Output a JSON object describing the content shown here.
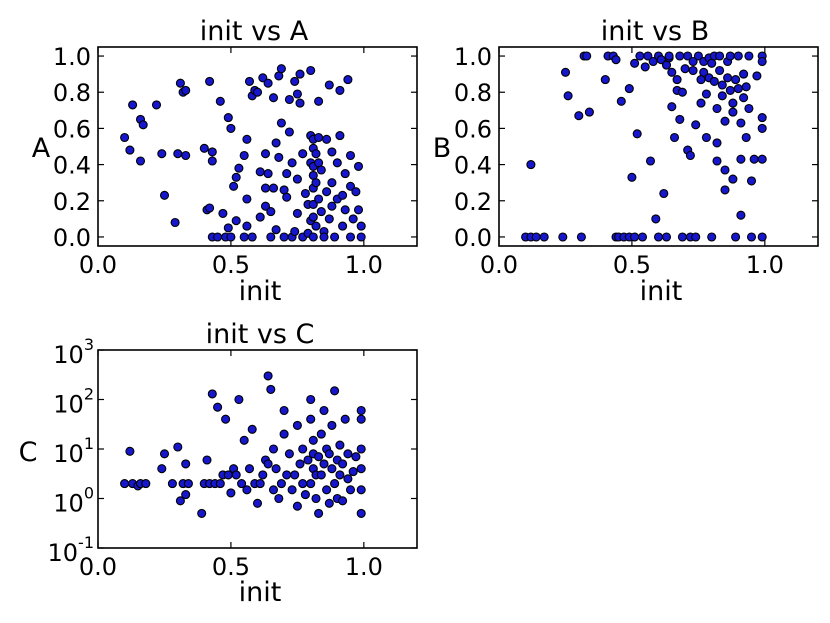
{
  "chart_data": [
    {
      "type": "scatter",
      "title": "init vs A",
      "xlabel": "init",
      "ylabel": "A",
      "xlim": [
        0.0,
        1.2
      ],
      "ylim": [
        -0.05,
        1.05
      ],
      "yscale": "linear",
      "xticks": [
        "0.0",
        "0.5",
        "1.0"
      ],
      "yticks": [
        "0.0",
        "0.2",
        "0.4",
        "0.6",
        "0.8",
        "1.0"
      ],
      "grid": false,
      "marker_color": "#1616cc",
      "points": [
        [
          0.1,
          0.55
        ],
        [
          0.12,
          0.48
        ],
        [
          0.13,
          0.73
        ],
        [
          0.16,
          0.65
        ],
        [
          0.16,
          0.42
        ],
        [
          0.17,
          0.62
        ],
        [
          0.22,
          0.73
        ],
        [
          0.24,
          0.46
        ],
        [
          0.25,
          0.23
        ],
        [
          0.29,
          0.08
        ],
        [
          0.3,
          0.46
        ],
        [
          0.31,
          0.85
        ],
        [
          0.32,
          0.8
        ],
        [
          0.33,
          0.81
        ],
        [
          0.33,
          0.45
        ],
        [
          0.4,
          0.49
        ],
        [
          0.41,
          0.15
        ],
        [
          0.42,
          0.16
        ],
        [
          0.42,
          0.86
        ],
        [
          0.43,
          0.47
        ],
        [
          0.43,
          0.42
        ],
        [
          0.43,
          0.0
        ],
        [
          0.45,
          0.0
        ],
        [
          0.46,
          0.75
        ],
        [
          0.47,
          0.13
        ],
        [
          0.48,
          0.0
        ],
        [
          0.49,
          0.66
        ],
        [
          0.49,
          0.05
        ],
        [
          0.5,
          0.0
        ],
        [
          0.5,
          0.6
        ],
        [
          0.51,
          0.28
        ],
        [
          0.52,
          0.33
        ],
        [
          0.52,
          0.09
        ],
        [
          0.53,
          0.38
        ],
        [
          0.55,
          0.0
        ],
        [
          0.55,
          0.45
        ],
        [
          0.56,
          0.54
        ],
        [
          0.56,
          0.21
        ],
        [
          0.56,
          0.06
        ],
        [
          0.57,
          0.86
        ],
        [
          0.58,
          0.78
        ],
        [
          0.58,
          0.0
        ],
        [
          0.59,
          0.81
        ],
        [
          0.6,
          0.8
        ],
        [
          0.61,
          0.11
        ],
        [
          0.61,
          0.36
        ],
        [
          0.62,
          0.88
        ],
        [
          0.63,
          0.17
        ],
        [
          0.63,
          0.46
        ],
        [
          0.63,
          0.27
        ],
        [
          0.64,
          0.85
        ],
        [
          0.64,
          0.35
        ],
        [
          0.65,
          0.0
        ],
        [
          0.65,
          0.14
        ],
        [
          0.66,
          0.77
        ],
        [
          0.66,
          0.27
        ],
        [
          0.67,
          0.04
        ],
        [
          0.67,
          0.52
        ],
        [
          0.68,
          0.44
        ],
        [
          0.68,
          0.89
        ],
        [
          0.69,
          0.93
        ],
        [
          0.69,
          0.63
        ],
        [
          0.7,
          0.0
        ],
        [
          0.7,
          0.26
        ],
        [
          0.71,
          0.35
        ],
        [
          0.71,
          0.22
        ],
        [
          0.72,
          0.76
        ],
        [
          0.72,
          0.58
        ],
        [
          0.73,
          0.41
        ],
        [
          0.73,
          0.0
        ],
        [
          0.74,
          0.03
        ],
        [
          0.74,
          0.86
        ],
        [
          0.75,
          0.79
        ],
        [
          0.75,
          0.32
        ],
        [
          0.75,
          0.13
        ],
        [
          0.76,
          0.9
        ],
        [
          0.76,
          0.74
        ],
        [
          0.77,
          0.46
        ],
        [
          0.77,
          0.0
        ],
        [
          0.78,
          0.24
        ],
        [
          0.79,
          0.18
        ],
        [
          0.79,
          0.02
        ],
        [
          0.8,
          0.92
        ],
        [
          0.8,
          0.56
        ],
        [
          0.8,
          0.41
        ],
        [
          0.8,
          0.09
        ],
        [
          0.81,
          0.54
        ],
        [
          0.81,
          0.49
        ],
        [
          0.81,
          0.39
        ],
        [
          0.81,
          0.34
        ],
        [
          0.81,
          0.27
        ],
        [
          0.81,
          0.18
        ],
        [
          0.81,
          0.11
        ],
        [
          0.81,
          0.0
        ],
        [
          0.82,
          0.46
        ],
        [
          0.82,
          0.3
        ],
        [
          0.82,
          0.06
        ],
        [
          0.83,
          0.75
        ],
        [
          0.83,
          0.55
        ],
        [
          0.83,
          0.41
        ],
        [
          0.83,
          0.21
        ],
        [
          0.84,
          0.37
        ],
        [
          0.84,
          0.14
        ],
        [
          0.85,
          0.03
        ],
        [
          0.85,
          0.0
        ],
        [
          0.86,
          0.54
        ],
        [
          0.86,
          0.25
        ],
        [
          0.87,
          0.84
        ],
        [
          0.87,
          0.1
        ],
        [
          0.88,
          0.47
        ],
        [
          0.88,
          0.3
        ],
        [
          0.88,
          0.17
        ],
        [
          0.89,
          0.0
        ],
        [
          0.9,
          0.41
        ],
        [
          0.9,
          0.21
        ],
        [
          0.91,
          0.81
        ],
        [
          0.91,
          0.56
        ],
        [
          0.92,
          0.23
        ],
        [
          0.92,
          0.06
        ],
        [
          0.93,
          0.35
        ],
        [
          0.93,
          0.15
        ],
        [
          0.94,
          0.87
        ],
        [
          0.95,
          0.45
        ],
        [
          0.95,
          0.28
        ],
        [
          0.95,
          0.0
        ],
        [
          0.96,
          0.1
        ],
        [
          0.97,
          0.25
        ],
        [
          0.98,
          0.15
        ],
        [
          0.98,
          0.39
        ],
        [
          0.99,
          0.0
        ],
        [
          0.99,
          0.06
        ]
      ]
    },
    {
      "type": "scatter",
      "title": "init vs B",
      "xlabel": "init",
      "ylabel": "B",
      "xlim": [
        0.0,
        1.2
      ],
      "ylim": [
        -0.05,
        1.05
      ],
      "yscale": "linear",
      "xticks": [
        "0.0",
        "0.5",
        "1.0"
      ],
      "yticks": [
        "0.0",
        "0.2",
        "0.4",
        "0.6",
        "0.8",
        "1.0"
      ],
      "grid": false,
      "marker_color": "#1616cc",
      "points": [
        [
          0.1,
          0.0
        ],
        [
          0.12,
          0.0
        ],
        [
          0.12,
          0.4
        ],
        [
          0.14,
          0.0
        ],
        [
          0.17,
          0.0
        ],
        [
          0.24,
          0.0
        ],
        [
          0.25,
          0.91
        ],
        [
          0.26,
          0.78
        ],
        [
          0.3,
          0.67
        ],
        [
          0.31,
          0.0
        ],
        [
          0.32,
          1.0
        ],
        [
          0.33,
          1.0
        ],
        [
          0.34,
          0.69
        ],
        [
          0.4,
          0.87
        ],
        [
          0.41,
          1.0
        ],
        [
          0.43,
          1.0
        ],
        [
          0.44,
          0.98
        ],
        [
          0.44,
          0.0
        ],
        [
          0.45,
          0.0
        ],
        [
          0.46,
          0.75
        ],
        [
          0.47,
          0.0
        ],
        [
          0.49,
          0.0
        ],
        [
          0.49,
          0.82
        ],
        [
          0.5,
          0.33
        ],
        [
          0.51,
          0.96
        ],
        [
          0.51,
          0.0
        ],
        [
          0.52,
          0.57
        ],
        [
          0.53,
          1.0
        ],
        [
          0.54,
          0.0
        ],
        [
          0.55,
          0.94
        ],
        [
          0.56,
          1.0
        ],
        [
          0.57,
          0.42
        ],
        [
          0.58,
          0.97
        ],
        [
          0.59,
          0.1
        ],
        [
          0.6,
          0.0
        ],
        [
          0.6,
          1.0
        ],
        [
          0.61,
          0.98
        ],
        [
          0.62,
          0.24
        ],
        [
          0.63,
          0.95
        ],
        [
          0.63,
          0.0
        ],
        [
          0.64,
          0.99
        ],
        [
          0.64,
          1.0
        ],
        [
          0.65,
          0.72
        ],
        [
          0.65,
          0.91
        ],
        [
          0.66,
          0.55
        ],
        [
          0.67,
          0.81
        ],
        [
          0.67,
          0.87
        ],
        [
          0.68,
          0.65
        ],
        [
          0.68,
          1.0
        ],
        [
          0.69,
          0.8
        ],
        [
          0.69,
          0.0
        ],
        [
          0.7,
          0.93
        ],
        [
          0.71,
          0.48
        ],
        [
          0.71,
          1.0
        ],
        [
          0.72,
          0.45
        ],
        [
          0.72,
          0.0
        ],
        [
          0.73,
          0.92
        ],
        [
          0.73,
          0.97
        ],
        [
          0.74,
          0.62
        ],
        [
          0.74,
          0.0
        ],
        [
          0.75,
          1.0
        ],
        [
          0.76,
          0.87
        ],
        [
          0.76,
          0.74
        ],
        [
          0.77,
          0.97
        ],
        [
          0.77,
          0.91
        ],
        [
          0.78,
          0.79
        ],
        [
          0.78,
          0.55
        ],
        [
          0.79,
          0.88
        ],
        [
          0.79,
          0.99
        ],
        [
          0.8,
          0.96
        ],
        [
          0.8,
          0.0
        ],
        [
          0.81,
          1.0
        ],
        [
          0.81,
          0.86
        ],
        [
          0.82,
          0.71
        ],
        [
          0.82,
          0.52
        ],
        [
          0.82,
          0.42
        ],
        [
          0.83,
          1.0
        ],
        [
          0.83,
          0.92
        ],
        [
          0.84,
          0.84
        ],
        [
          0.84,
          0.78
        ],
        [
          0.85,
          0.64
        ],
        [
          0.85,
          0.37
        ],
        [
          0.85,
          0.26
        ],
        [
          0.86,
          0.88
        ],
        [
          0.86,
          0.97
        ],
        [
          0.87,
          0.81
        ],
        [
          0.87,
          1.0
        ],
        [
          0.88,
          0.74
        ],
        [
          0.88,
          0.69
        ],
        [
          0.88,
          0.32
        ],
        [
          0.89,
          0.87
        ],
        [
          0.89,
          0.0
        ],
        [
          0.9,
          1.0
        ],
        [
          0.9,
          0.82
        ],
        [
          0.91,
          0.63
        ],
        [
          0.91,
          0.43
        ],
        [
          0.91,
          0.12
        ],
        [
          0.92,
          0.9
        ],
        [
          0.92,
          0.77
        ],
        [
          0.93,
          0.83
        ],
        [
          0.93,
          0.55
        ],
        [
          0.94,
          1.0
        ],
        [
          0.94,
          0.71
        ],
        [
          0.95,
          0.31
        ],
        [
          0.95,
          0.0
        ],
        [
          0.96,
          0.43
        ],
        [
          0.97,
          0.89
        ],
        [
          0.99,
          1.0
        ],
        [
          0.99,
          0.97
        ],
        [
          0.99,
          0.66
        ],
        [
          0.99,
          0.6
        ],
        [
          0.99,
          0.43
        ],
        [
          0.99,
          0.0
        ]
      ]
    },
    {
      "type": "scatter",
      "title": "init vs C",
      "xlabel": "init",
      "ylabel": "C",
      "xlim": [
        0.0,
        1.2
      ],
      "ylim": [
        0.1,
        1000
      ],
      "yscale": "log",
      "xticks": [
        "0.0",
        "0.5",
        "1.0"
      ],
      "yticks": [
        {
          "base": "10",
          "exp": "-1"
        },
        {
          "base": "10",
          "exp": "0"
        },
        {
          "base": "10",
          "exp": "1"
        },
        {
          "base": "10",
          "exp": "2"
        },
        {
          "base": "10",
          "exp": "3"
        }
      ],
      "grid": false,
      "marker_color": "#1616cc",
      "points": [
        [
          0.1,
          2.0
        ],
        [
          0.12,
          9.0
        ],
        [
          0.13,
          2.0
        ],
        [
          0.15,
          1.8
        ],
        [
          0.16,
          2.0
        ],
        [
          0.18,
          2.0
        ],
        [
          0.24,
          4.0
        ],
        [
          0.25,
          8.0
        ],
        [
          0.28,
          2.0
        ],
        [
          0.3,
          11
        ],
        [
          0.31,
          0.9
        ],
        [
          0.32,
          2.0
        ],
        [
          0.33,
          1.2
        ],
        [
          0.33,
          5.0
        ],
        [
          0.34,
          2.0
        ],
        [
          0.39,
          0.5
        ],
        [
          0.4,
          2.0
        ],
        [
          0.41,
          6.0
        ],
        [
          0.42,
          2.0
        ],
        [
          0.43,
          130
        ],
        [
          0.44,
          2.0
        ],
        [
          0.45,
          70
        ],
        [
          0.46,
          2.0
        ],
        [
          0.47,
          3.0
        ],
        [
          0.48,
          40
        ],
        [
          0.49,
          3.0
        ],
        [
          0.5,
          1.3
        ],
        [
          0.51,
          4.0
        ],
        [
          0.52,
          3.0
        ],
        [
          0.53,
          100
        ],
        [
          0.54,
          2.0
        ],
        [
          0.55,
          15
        ],
        [
          0.56,
          1.5
        ],
        [
          0.57,
          4.0
        ],
        [
          0.58,
          25
        ],
        [
          0.59,
          2.0
        ],
        [
          0.6,
          0.8
        ],
        [
          0.61,
          2.0
        ],
        [
          0.62,
          3.0
        ],
        [
          0.63,
          6.0
        ],
        [
          0.64,
          5.0
        ],
        [
          0.64,
          300
        ],
        [
          0.65,
          160
        ],
        [
          0.66,
          10
        ],
        [
          0.66,
          1.5
        ],
        [
          0.67,
          4.0
        ],
        [
          0.68,
          1.0
        ],
        [
          0.69,
          2.0
        ],
        [
          0.7,
          60
        ],
        [
          0.7,
          20
        ],
        [
          0.71,
          3.0
        ],
        [
          0.72,
          8.0
        ],
        [
          0.73,
          1.5
        ],
        [
          0.74,
          3.0
        ],
        [
          0.75,
          0.7
        ],
        [
          0.75,
          30
        ],
        [
          0.76,
          5.0
        ],
        [
          0.77,
          10
        ],
        [
          0.77,
          2.0
        ],
        [
          0.78,
          1.2
        ],
        [
          0.79,
          6.0
        ],
        [
          0.8,
          2.0
        ],
        [
          0.8,
          40
        ],
        [
          0.8,
          100
        ],
        [
          0.81,
          4.0
        ],
        [
          0.81,
          8.0
        ],
        [
          0.81,
          15
        ],
        [
          0.82,
          1.0
        ],
        [
          0.82,
          3.0
        ],
        [
          0.83,
          7.0
        ],
        [
          0.83,
          0.5
        ],
        [
          0.84,
          20
        ],
        [
          0.84,
          3.0
        ],
        [
          0.85,
          5.0
        ],
        [
          0.85,
          60
        ],
        [
          0.86,
          10
        ],
        [
          0.86,
          1.5
        ],
        [
          0.87,
          8.0
        ],
        [
          0.87,
          0.8
        ],
        [
          0.88,
          4.0
        ],
        [
          0.88,
          30
        ],
        [
          0.89,
          2.0
        ],
        [
          0.89,
          150
        ],
        [
          0.9,
          6.0
        ],
        [
          0.9,
          1.0
        ],
        [
          0.91,
          12
        ],
        [
          0.91,
          3.0
        ],
        [
          0.92,
          5.0
        ],
        [
          0.92,
          0.9
        ],
        [
          0.93,
          40
        ],
        [
          0.94,
          2.5
        ],
        [
          0.94,
          8.0
        ],
        [
          0.95,
          1.5
        ],
        [
          0.96,
          3.5
        ],
        [
          0.97,
          7.0
        ],
        [
          0.99,
          60
        ],
        [
          0.99,
          40
        ],
        [
          0.99,
          10
        ],
        [
          0.99,
          4.0
        ],
        [
          0.99,
          1.5
        ],
        [
          0.99,
          0.5
        ]
      ]
    }
  ]
}
